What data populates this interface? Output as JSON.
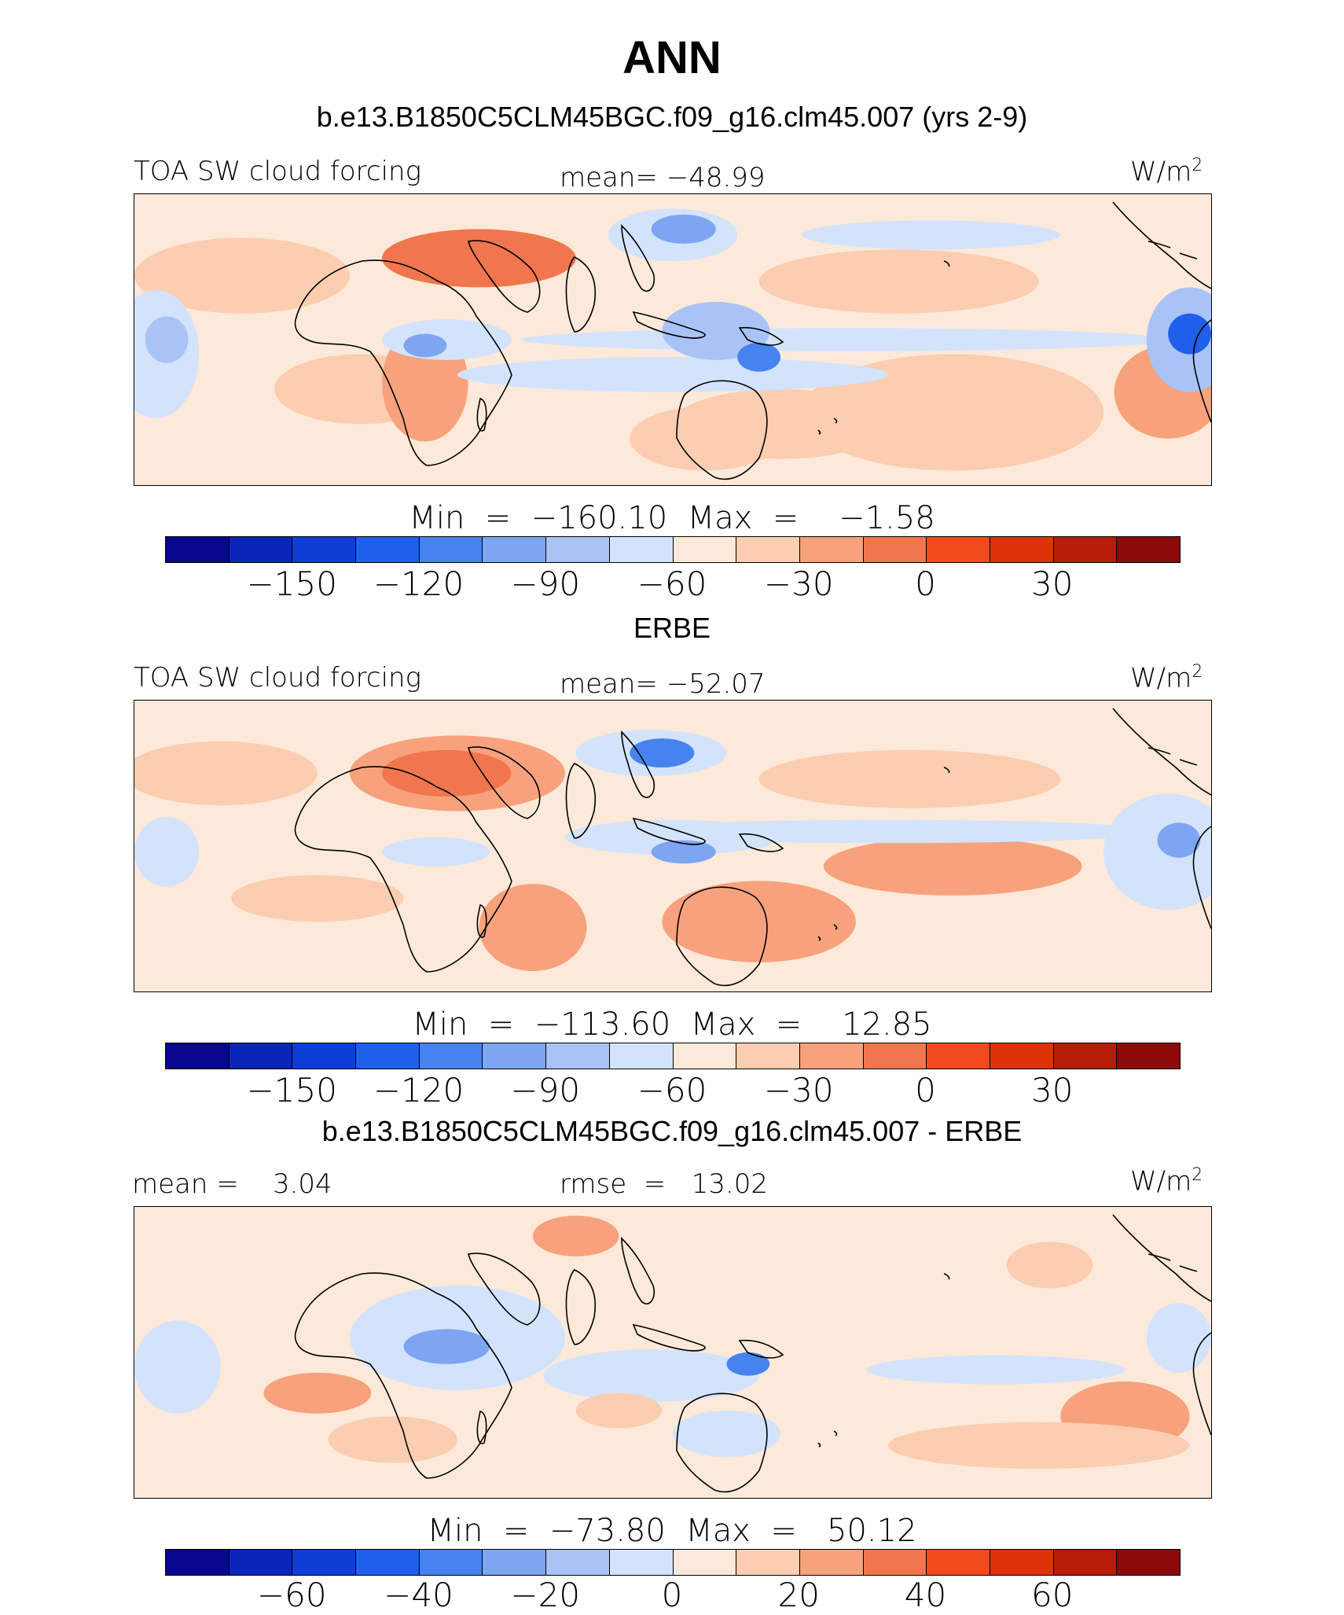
{
  "title": "ANN",
  "colors": [
    "#08088f",
    "#0a26b8",
    "#0d3fd6",
    "#1f5fec",
    "#4783ef",
    "#7da5f2",
    "#a9c3f6",
    "#d3e3fb",
    "#fde9da",
    "#fbcdb1",
    "#f7a27d",
    "#f1764d",
    "#f04a1d",
    "#dd3308",
    "#b51d08",
    "#8c0a08"
  ],
  "panels": [
    {
      "header": "b.e13.B1850C5CLM45BGC.f09_g16.clm45.007 (yrs 2-9)",
      "left_label": "TOA SW cloud forcing",
      "center_label": "mean= −48.99",
      "units": "W/m",
      "units_sup": "2",
      "minmax": "Min  =  −160.10  Max  =    −1.58",
      "ticks": [
        "−150",
        "−120",
        "−90",
        "−60",
        "−30",
        "0",
        "30"
      ],
      "background": "#fde9da",
      "blobs": [
        {
          "cx": 32,
          "cy": 22,
          "rx": 9,
          "ry": 10,
          "color": "#f1764d"
        },
        {
          "cx": 10,
          "cy": 28,
          "rx": 10,
          "ry": 13,
          "color": "#fbcdb1"
        },
        {
          "cx": 71,
          "cy": 30,
          "rx": 13,
          "ry": 11,
          "color": "#fbcdb1"
        },
        {
          "cx": 96,
          "cy": 68,
          "rx": 5,
          "ry": 16,
          "color": "#f7a27d"
        },
        {
          "cx": 21,
          "cy": 67,
          "rx": 8,
          "ry": 12,
          "color": "#fbcdb1"
        },
        {
          "cx": 27,
          "cy": 65,
          "rx": 4,
          "ry": 20,
          "color": "#f7a27d"
        },
        {
          "cx": 53,
          "cy": 84,
          "rx": 7,
          "ry": 11,
          "color": "#fbcdb1"
        },
        {
          "cx": 60,
          "cy": 79,
          "rx": 10,
          "ry": 12,
          "color": "#fbcdb1"
        },
        {
          "cx": 76,
          "cy": 75,
          "rx": 14,
          "ry": 20,
          "color": "#fbcdb1"
        },
        {
          "cx": 2,
          "cy": 55,
          "rx": 4,
          "ry": 22,
          "color": "#d3e3fb"
        },
        {
          "cx": 3,
          "cy": 50,
          "rx": 2,
          "ry": 8,
          "color": "#a9c3f6"
        },
        {
          "cx": 29,
          "cy": 50,
          "rx": 6,
          "ry": 7,
          "color": "#d3e3fb"
        },
        {
          "cx": 27,
          "cy": 52,
          "rx": 2,
          "ry": 4,
          "color": "#7da5f2"
        },
        {
          "cx": 50,
          "cy": 62,
          "rx": 20,
          "ry": 6,
          "color": "#d3e3fb"
        },
        {
          "cx": 66,
          "cy": 50,
          "rx": 30,
          "ry": 4,
          "color": "#d3e3fb"
        },
        {
          "cx": 54,
          "cy": 47,
          "rx": 5,
          "ry": 10,
          "color": "#a9c3f6"
        },
        {
          "cx": 58,
          "cy": 56,
          "rx": 2,
          "ry": 5,
          "color": "#4783ef"
        },
        {
          "cx": 50,
          "cy": 14,
          "rx": 6,
          "ry": 9,
          "color": "#d3e3fb"
        },
        {
          "cx": 51,
          "cy": 12,
          "rx": 3,
          "ry": 5,
          "color": "#7da5f2"
        },
        {
          "cx": 74,
          "cy": 14,
          "rx": 12,
          "ry": 5,
          "color": "#d3e3fb"
        },
        {
          "cx": 98,
          "cy": 50,
          "rx": 4,
          "ry": 18,
          "color": "#a9c3f6"
        },
        {
          "cx": 98,
          "cy": 48,
          "rx": 2,
          "ry": 7,
          "color": "#1f5fec"
        }
      ]
    },
    {
      "header": "ERBE",
      "left_label": "TOA SW cloud forcing",
      "center_label": "mean= −52.07",
      "units": "W/m",
      "units_sup": "2",
      "minmax": "Min  =  −113.60  Max  =    12.85",
      "ticks": [
        "−150",
        "−120",
        "−90",
        "−60",
        "−30",
        "0",
        "30"
      ],
      "background": "#fde9da",
      "blobs": [
        {
          "cx": 30,
          "cy": 25,
          "rx": 10,
          "ry": 13,
          "color": "#f7a27d"
        },
        {
          "cx": 29,
          "cy": 25,
          "rx": 6,
          "ry": 8,
          "color": "#f1764d"
        },
        {
          "cx": 8,
          "cy": 25,
          "rx": 9,
          "ry": 11,
          "color": "#fbcdb1"
        },
        {
          "cx": 72,
          "cy": 27,
          "rx": 14,
          "ry": 10,
          "color": "#fbcdb1"
        },
        {
          "cx": 76,
          "cy": 57,
          "rx": 12,
          "ry": 10,
          "color": "#f7a27d"
        },
        {
          "cx": 58,
          "cy": 76,
          "rx": 9,
          "ry": 14,
          "color": "#f7a27d"
        },
        {
          "cx": 37,
          "cy": 78,
          "rx": 5,
          "ry": 15,
          "color": "#f7a27d"
        },
        {
          "cx": 17,
          "cy": 68,
          "rx": 8,
          "ry": 8,
          "color": "#fbcdb1"
        },
        {
          "cx": 48,
          "cy": 18,
          "rx": 7,
          "ry": 8,
          "color": "#d3e3fb"
        },
        {
          "cx": 49,
          "cy": 18,
          "rx": 3,
          "ry": 5,
          "color": "#4783ef"
        },
        {
          "cx": 50,
          "cy": 47,
          "rx": 10,
          "ry": 6,
          "color": "#d3e3fb"
        },
        {
          "cx": 51,
          "cy": 52,
          "rx": 3,
          "ry": 4,
          "color": "#7da5f2"
        },
        {
          "cx": 70,
          "cy": 45,
          "rx": 25,
          "ry": 4,
          "color": "#d3e3fb"
        },
        {
          "cx": 96,
          "cy": 52,
          "rx": 6,
          "ry": 20,
          "color": "#d3e3fb"
        },
        {
          "cx": 97,
          "cy": 48,
          "rx": 2,
          "ry": 6,
          "color": "#7da5f2"
        },
        {
          "cx": 3,
          "cy": 52,
          "rx": 3,
          "ry": 12,
          "color": "#d3e3fb"
        },
        {
          "cx": 28,
          "cy": 52,
          "rx": 5,
          "ry": 5,
          "color": "#d3e3fb"
        }
      ]
    },
    {
      "header": "b.e13.B1850C5CLM45BGC.f09_g16.clm45.007 - ERBE",
      "left_label": "mean =    3.04",
      "center_label": "rmse  =   13.02",
      "units": "W/m",
      "units_sup": "2",
      "minmax": "Min  =  −73.80  Max  =   50.12",
      "ticks": [
        "−60",
        "−40",
        "−20",
        "0",
        "20",
        "40",
        "60"
      ],
      "background": "#fde9da",
      "blobs": [
        {
          "cx": 30,
          "cy": 45,
          "rx": 10,
          "ry": 18,
          "color": "#d3e3fb"
        },
        {
          "cx": 29,
          "cy": 48,
          "rx": 4,
          "ry": 6,
          "color": "#7da5f2"
        },
        {
          "cx": 48,
          "cy": 58,
          "rx": 10,
          "ry": 9,
          "color": "#d3e3fb"
        },
        {
          "cx": 57,
          "cy": 54,
          "rx": 2,
          "ry": 4,
          "color": "#4783ef"
        },
        {
          "cx": 55,
          "cy": 78,
          "rx": 5,
          "ry": 8,
          "color": "#d3e3fb"
        },
        {
          "cx": 80,
          "cy": 56,
          "rx": 12,
          "ry": 5,
          "color": "#d3e3fb"
        },
        {
          "cx": 4,
          "cy": 55,
          "rx": 4,
          "ry": 16,
          "color": "#d3e3fb"
        },
        {
          "cx": 97,
          "cy": 45,
          "rx": 3,
          "ry": 12,
          "color": "#d3e3fb"
        },
        {
          "cx": 41,
          "cy": 10,
          "rx": 4,
          "ry": 7,
          "color": "#f7a27d"
        },
        {
          "cx": 85,
          "cy": 20,
          "rx": 4,
          "ry": 8,
          "color": "#fbcdb1"
        },
        {
          "cx": 92,
          "cy": 72,
          "rx": 6,
          "ry": 12,
          "color": "#f7a27d"
        },
        {
          "cx": 84,
          "cy": 82,
          "rx": 14,
          "ry": 8,
          "color": "#fbcdb1"
        },
        {
          "cx": 17,
          "cy": 64,
          "rx": 5,
          "ry": 7,
          "color": "#f7a27d"
        },
        {
          "cx": 24,
          "cy": 80,
          "rx": 6,
          "ry": 8,
          "color": "#fbcdb1"
        },
        {
          "cx": 45,
          "cy": 70,
          "rx": 4,
          "ry": 6,
          "color": "#fbcdb1"
        }
      ]
    }
  ]
}
